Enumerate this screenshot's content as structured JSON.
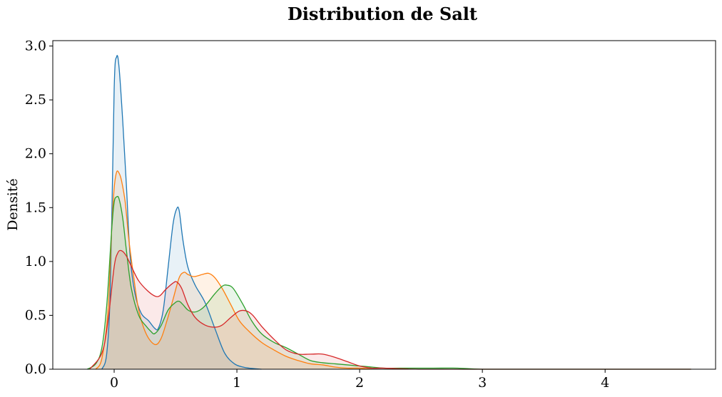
{
  "chart_data": {
    "type": "area",
    "title": "Distribution de Salt",
    "xlabel": "",
    "ylabel": "Densité",
    "xlim": [
      -0.5,
      4.9
    ],
    "ylim": [
      0,
      3.05
    ],
    "xticks": [
      0,
      1,
      2,
      3,
      4
    ],
    "xtick_labels": [
      "0",
      "1",
      "2",
      "3",
      "4"
    ],
    "yticks": [
      0.0,
      0.5,
      1.0,
      1.5,
      2.0,
      2.5,
      3.0
    ],
    "ytick_labels": [
      "0.0",
      "0.5",
      "1.0",
      "1.5",
      "2.0",
      "2.5",
      "3.0"
    ],
    "grid": false,
    "legend": "none",
    "series": [
      {
        "color": "#1f77b4",
        "x": [
          -0.1,
          -0.06,
          -0.03,
          0.0,
          0.02,
          0.04,
          0.07,
          0.1,
          0.13,
          0.17,
          0.22,
          0.28,
          0.33,
          0.36,
          0.4,
          0.44,
          0.48,
          0.51,
          0.53,
          0.56,
          0.6,
          0.66,
          0.74,
          0.82,
          0.9,
          0.98,
          1.05,
          1.1,
          1.2
        ],
        "y": [
          0.0,
          0.15,
          0.8,
          2.6,
          2.9,
          2.8,
          2.3,
          1.7,
          1.05,
          0.7,
          0.52,
          0.45,
          0.38,
          0.38,
          0.55,
          0.95,
          1.35,
          1.49,
          1.47,
          1.2,
          0.95,
          0.78,
          0.62,
          0.38,
          0.15,
          0.05,
          0.02,
          0.01,
          0.0
        ]
      },
      {
        "color": "#ff7f0e",
        "x": [
          -0.15,
          -0.1,
          -0.05,
          -0.02,
          0.0,
          0.02,
          0.04,
          0.06,
          0.09,
          0.12,
          0.16,
          0.2,
          0.26,
          0.33,
          0.38,
          0.43,
          0.48,
          0.53,
          0.57,
          0.6,
          0.65,
          0.72,
          0.77,
          0.82,
          0.88,
          0.95,
          1.02,
          1.1,
          1.2,
          1.3,
          1.4,
          1.5,
          1.6,
          1.7,
          1.8,
          1.9,
          2.0,
          2.1
        ],
        "y": [
          0.0,
          0.1,
          0.55,
          1.3,
          1.68,
          1.83,
          1.82,
          1.75,
          1.55,
          1.2,
          0.85,
          0.55,
          0.33,
          0.23,
          0.28,
          0.45,
          0.65,
          0.85,
          0.9,
          0.88,
          0.86,
          0.88,
          0.89,
          0.85,
          0.75,
          0.6,
          0.45,
          0.35,
          0.25,
          0.18,
          0.12,
          0.08,
          0.05,
          0.04,
          0.02,
          0.01,
          0.01,
          0.0
        ]
      },
      {
        "color": "#2ca02c",
        "x": [
          -0.22,
          -0.15,
          -0.1,
          -0.06,
          -0.02,
          0.0,
          0.02,
          0.04,
          0.07,
          0.1,
          0.14,
          0.2,
          0.26,
          0.3,
          0.33,
          0.38,
          0.44,
          0.5,
          0.53,
          0.56,
          0.6,
          0.65,
          0.7,
          0.75,
          0.82,
          0.88,
          0.92,
          0.97,
          1.05,
          1.12,
          1.2,
          1.3,
          1.4,
          1.5,
          1.6,
          1.7,
          1.8,
          1.9,
          2.0,
          2.1,
          2.2,
          2.4,
          2.6,
          2.8,
          3.0,
          3.5,
          4.0,
          4.7
        ],
        "y": [
          0.0,
          0.05,
          0.2,
          0.6,
          1.3,
          1.55,
          1.6,
          1.58,
          1.4,
          1.1,
          0.75,
          0.5,
          0.4,
          0.35,
          0.33,
          0.4,
          0.55,
          0.62,
          0.63,
          0.6,
          0.55,
          0.53,
          0.55,
          0.6,
          0.7,
          0.77,
          0.78,
          0.75,
          0.6,
          0.45,
          0.33,
          0.25,
          0.2,
          0.14,
          0.08,
          0.06,
          0.05,
          0.04,
          0.03,
          0.02,
          0.01,
          0.01,
          0.01,
          0.01,
          0.0,
          0.0,
          0.0,
          0.0
        ]
      },
      {
        "color": "#d62728",
        "x": [
          -0.2,
          -0.1,
          -0.05,
          0.0,
          0.03,
          0.06,
          0.1,
          0.15,
          0.2,
          0.27,
          0.33,
          0.37,
          0.42,
          0.48,
          0.51,
          0.55,
          0.6,
          0.66,
          0.74,
          0.82,
          0.88,
          0.95,
          1.02,
          1.08,
          1.13,
          1.2,
          1.3,
          1.4,
          1.5,
          1.6,
          1.7,
          1.8,
          1.9,
          2.0,
          2.1,
          2.2,
          2.5,
          3.0,
          3.5,
          4.0,
          4.7
        ],
        "y": [
          0.0,
          0.15,
          0.45,
          0.95,
          1.08,
          1.1,
          1.05,
          0.93,
          0.82,
          0.73,
          0.68,
          0.68,
          0.74,
          0.8,
          0.81,
          0.75,
          0.6,
          0.48,
          0.41,
          0.39,
          0.41,
          0.48,
          0.54,
          0.54,
          0.5,
          0.4,
          0.28,
          0.18,
          0.14,
          0.14,
          0.14,
          0.11,
          0.07,
          0.03,
          0.01,
          0.01,
          0.0,
          0.0,
          0.0,
          0.0,
          0.0
        ]
      }
    ]
  }
}
